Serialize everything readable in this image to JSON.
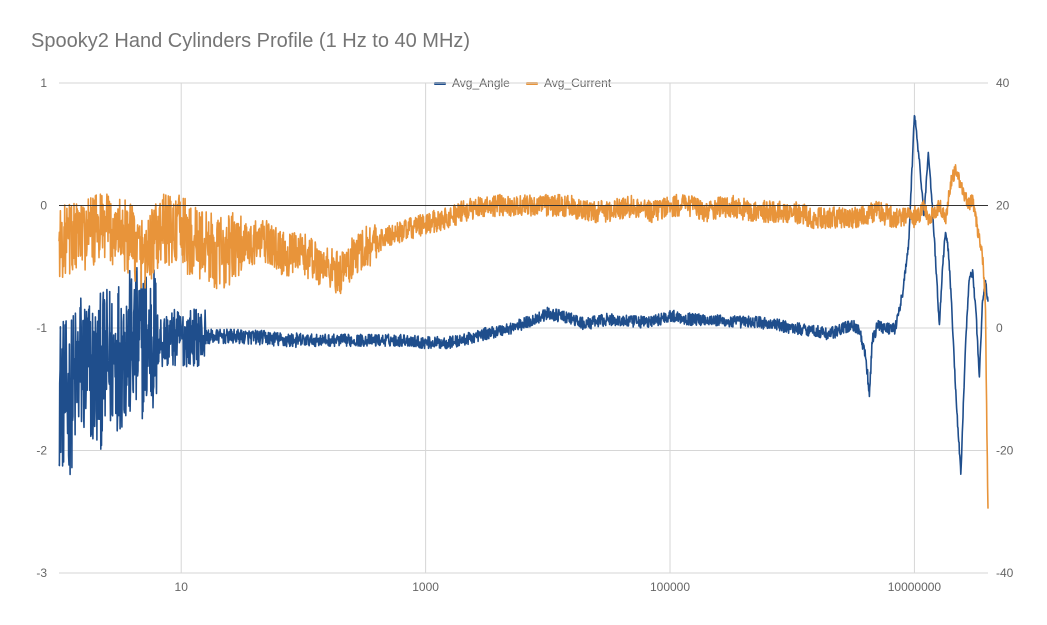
{
  "chart_data": {
    "type": "line",
    "title": "Spooky2 Hand Cylinders Profile (1 Hz to 40 MHz)",
    "xscale": "log",
    "xlim": [
      1,
      40000000
    ],
    "x_ticks": [
      10,
      1000,
      100000,
      10000000
    ],
    "x_tick_labels": [
      "10",
      "1000",
      "100000",
      "10000000"
    ],
    "y_left": {
      "lim": [
        -3,
        1
      ],
      "ticks": [
        1,
        0,
        -1,
        -2,
        -3
      ]
    },
    "y_right": {
      "lim": [
        -40,
        40
      ],
      "ticks": [
        40,
        20,
        0,
        -20,
        -40
      ]
    },
    "grid": true,
    "legend_position": "top",
    "series": [
      {
        "name": "Avg_Angle",
        "axis": "left",
        "color": "#1f4e8c",
        "noise": 0.4,
        "x": [
          1,
          1.2,
          1.5,
          2,
          3,
          4,
          5,
          7,
          10,
          15,
          20,
          30,
          50,
          70,
          100,
          200,
          300,
          500,
          700,
          1000,
          1500,
          2000,
          3000,
          5000,
          7000,
          10000,
          15000,
          20000,
          30000,
          50000,
          70000,
          100000,
          150000,
          200000,
          300000,
          500000,
          700000,
          1000000,
          1500000,
          2000000,
          3000000,
          3500000,
          4000000,
          4300000,
          4500000,
          5000000,
          6000000,
          7000000,
          8000000,
          9000000,
          10000000,
          11000000,
          12000000,
          13000000,
          14000000,
          15000000,
          16000000,
          17000000,
          18000000,
          19000000,
          20000000,
          22000000,
          24000000,
          26000000,
          28000000,
          30000000,
          32000000,
          34000000,
          36000000,
          38000000,
          40000000
        ],
        "y": [
          -1.5,
          -1.6,
          -1.3,
          -1.4,
          -1.2,
          -1.15,
          -1.1,
          -1.1,
          -1.08,
          -1.07,
          -1.07,
          -1.07,
          -1.08,
          -1.1,
          -1.1,
          -1.1,
          -1.1,
          -1.1,
          -1.1,
          -1.12,
          -1.12,
          -1.1,
          -1.05,
          -1.0,
          -0.95,
          -0.88,
          -0.92,
          -0.97,
          -0.93,
          -0.95,
          -0.95,
          -0.9,
          -0.93,
          -0.93,
          -0.95,
          -0.95,
          -0.97,
          -1.0,
          -1.02,
          -1.05,
          -0.98,
          -1.0,
          -1.25,
          -1.55,
          -1.1,
          -0.98,
          -1.0,
          -1.0,
          -0.72,
          -0.3,
          0.75,
          0.35,
          -0.1,
          0.45,
          0.0,
          -0.5,
          -0.98,
          -0.5,
          -0.2,
          -0.38,
          -0.75,
          -1.6,
          -2.2,
          -1.2,
          -0.6,
          -0.55,
          -0.9,
          -1.4,
          -0.8,
          -0.6,
          -0.8
        ]
      },
      {
        "name": "Avg_Current",
        "axis": "right",
        "color": "#e8943a",
        "noise": 6.0,
        "x": [
          1,
          1.5,
          2,
          3,
          4,
          5,
          7,
          10,
          12,
          15,
          20,
          25,
          30,
          40,
          50,
          70,
          100,
          150,
          200,
          300,
          500,
          700,
          1000,
          1500,
          2000,
          3000,
          5000,
          7000,
          10000,
          15000,
          20000,
          30000,
          50000,
          70000,
          100000,
          150000,
          200000,
          300000,
          500000,
          700000,
          1000000,
          1500000,
          2000000,
          3000000,
          5000000,
          7000000,
          9000000,
          10000000,
          11000000,
          12000000,
          13000000,
          15000000,
          16000000,
          18000000,
          20000000,
          22000000,
          25000000,
          28000000,
          30000000,
          33000000,
          36000000,
          38000000,
          40000000
        ],
        "y": [
          14,
          15,
          16,
          16,
          14,
          12,
          16,
          16,
          14,
          14,
          12,
          13,
          13,
          14,
          14,
          12,
          12,
          10,
          9,
          13,
          15,
          16,
          17,
          18,
          19,
          20,
          20,
          20,
          20,
          20,
          19,
          19,
          20,
          19,
          20,
          20,
          19,
          20,
          19,
          19,
          19,
          18,
          18,
          18,
          19,
          18,
          18,
          18,
          19,
          20,
          18,
          19,
          20,
          18,
          24,
          26,
          22,
          20,
          21,
          16,
          12,
          5,
          -30
        ]
      }
    ]
  }
}
